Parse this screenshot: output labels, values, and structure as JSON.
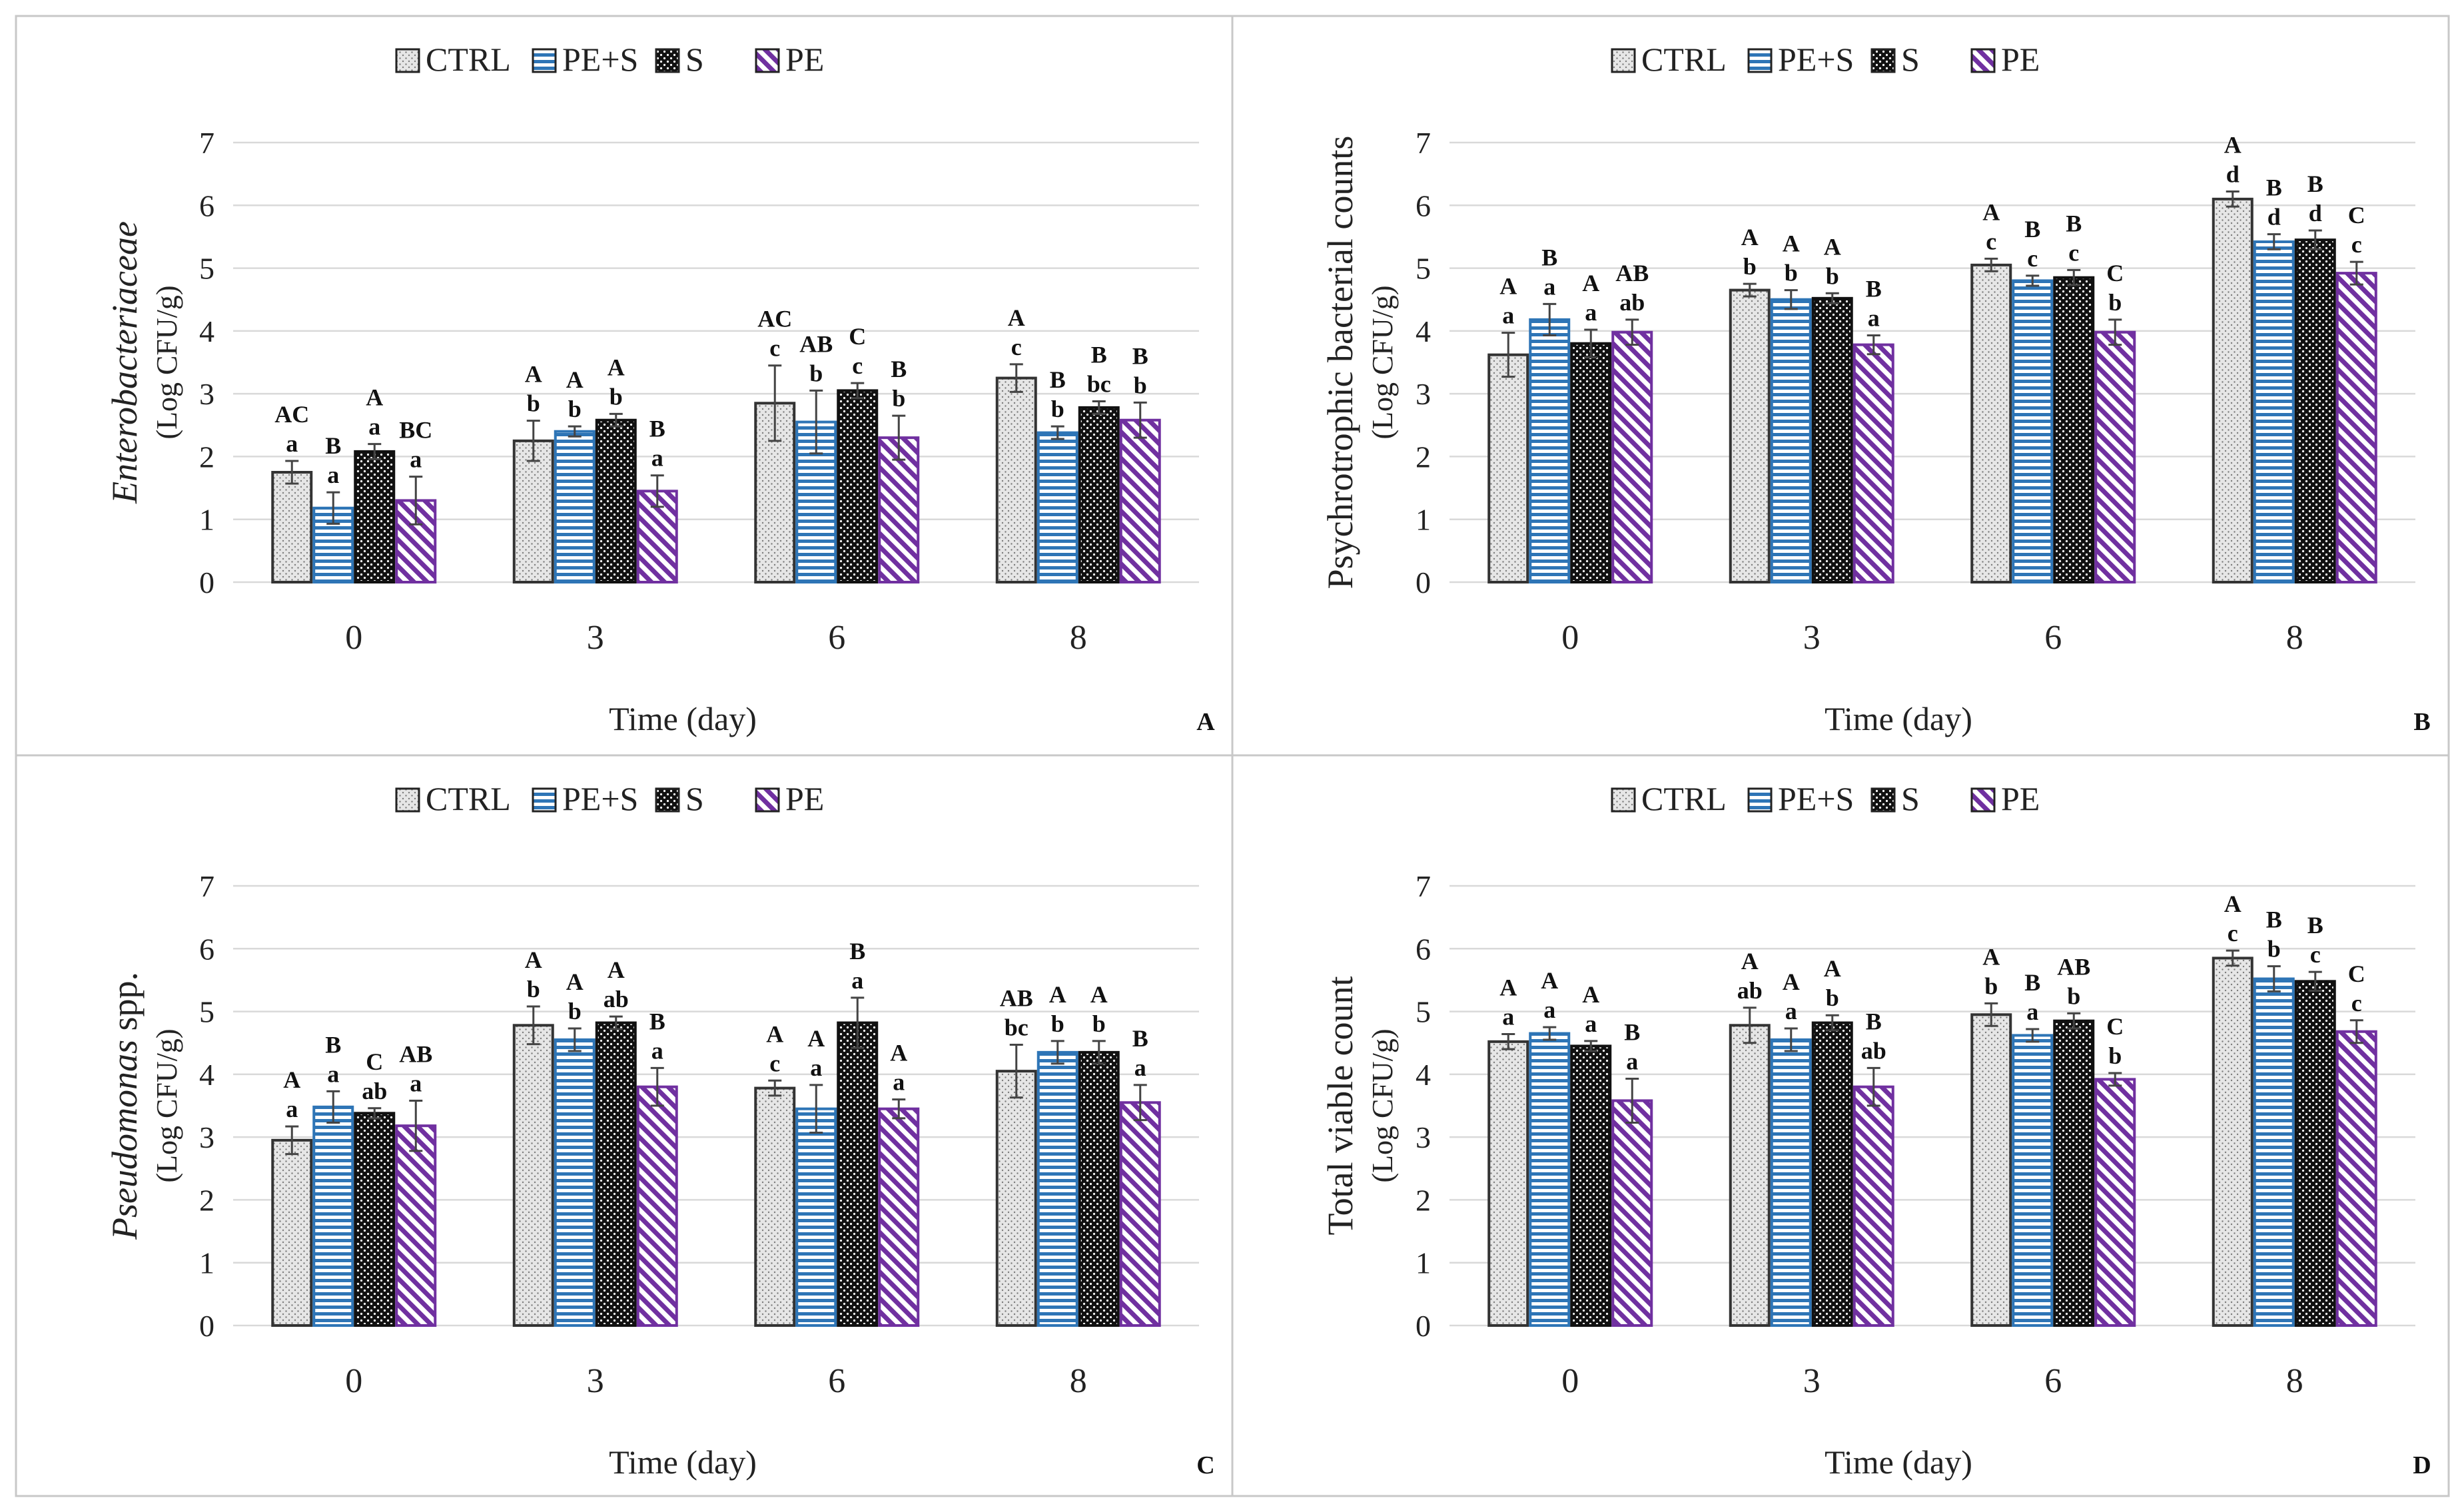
{
  "figure": {
    "legend": [
      "CTRL",
      "PE+S",
      "S",
      "PE"
    ],
    "xlabel": "Time (day)",
    "ylabel_unit": "(Log CFU/g)",
    "days": [
      "0",
      "3",
      "6",
      "8"
    ],
    "y_ticks": [
      "0",
      "1",
      "2",
      "3",
      "4",
      "5",
      "6",
      "7"
    ],
    "colors": {
      "ctrl": "#e6e6e6",
      "pes": "#2e75b6",
      "s": "#111111",
      "pe": "#7030a0",
      "grid": "#d9d9d9",
      "frame": "#c8c8c8"
    }
  },
  "chart_data": [
    {
      "type": "bar",
      "panel": "A",
      "ylabel_name": "Enterobacteriaceae",
      "ylabel_italic": true,
      "ylabel_suffix": "",
      "xlabel": "Time (day)",
      "ylim": [
        0,
        7
      ],
      "categories": [
        "0",
        "3",
        "6",
        "8"
      ],
      "series": [
        {
          "name": "CTRL",
          "values": [
            1.75,
            2.25,
            2.85,
            3.25
          ],
          "errors": [
            0.18,
            0.32,
            0.6,
            0.22
          ]
        },
        {
          "name": "PE+S",
          "values": [
            1.18,
            2.4,
            2.55,
            2.38
          ],
          "errors": [
            0.25,
            0.08,
            0.5,
            0.1
          ]
        },
        {
          "name": "S",
          "values": [
            2.08,
            2.58,
            3.05,
            2.78
          ],
          "errors": [
            0.12,
            0.1,
            0.12,
            0.1
          ]
        },
        {
          "name": "PE",
          "values": [
            1.3,
            1.45,
            2.3,
            2.58
          ],
          "errors": [
            0.38,
            0.25,
            0.35,
            0.28
          ]
        }
      ],
      "labels_upper": [
        [
          "AC",
          "A",
          "AC",
          "A"
        ],
        [
          "B",
          "A",
          "AB",
          "B"
        ],
        [
          "A",
          "A",
          "C",
          "B"
        ],
        [
          "BC",
          "B",
          "B",
          "B"
        ]
      ],
      "labels_lower": [
        [
          "a",
          "b",
          "c",
          "c"
        ],
        [
          "a",
          "b",
          "b",
          "b"
        ],
        [
          "a",
          "b",
          "c",
          "bc"
        ],
        [
          "a",
          "a",
          "b",
          "b"
        ]
      ]
    },
    {
      "type": "bar",
      "panel": "B",
      "ylabel_name": "Psychrotrophic  bacterial counts",
      "ylabel_italic": false,
      "ylabel_suffix": "",
      "xlabel": "Time (day)",
      "ylim": [
        0,
        7
      ],
      "categories": [
        "0",
        "3",
        "6",
        "8"
      ],
      "series": [
        {
          "name": "CTRL",
          "values": [
            3.62,
            4.65,
            5.05,
            6.1
          ],
          "errors": [
            0.35,
            0.1,
            0.1,
            0.12
          ]
        },
        {
          "name": "PE+S",
          "values": [
            4.18,
            4.5,
            4.8,
            5.42
          ],
          "errors": [
            0.25,
            0.15,
            0.08,
            0.12
          ]
        },
        {
          "name": "S",
          "values": [
            3.8,
            4.52,
            4.85,
            5.45
          ],
          "errors": [
            0.22,
            0.08,
            0.12,
            0.15
          ]
        },
        {
          "name": "PE",
          "values": [
            3.98,
            3.78,
            3.98,
            4.92
          ],
          "errors": [
            0.2,
            0.15,
            0.2,
            0.18
          ]
        }
      ],
      "labels_upper": [
        [
          "A",
          "A",
          "A",
          "A"
        ],
        [
          "B",
          "A",
          "B",
          "B"
        ],
        [
          "A",
          "A",
          "B",
          "B"
        ],
        [
          "AB",
          "B",
          "C",
          "C"
        ]
      ],
      "labels_lower": [
        [
          "a",
          "b",
          "c",
          "d"
        ],
        [
          "a",
          "b",
          "c",
          "d"
        ],
        [
          "a",
          "b",
          "c",
          "d"
        ],
        [
          "ab",
          "a",
          "b",
          "c"
        ]
      ]
    },
    {
      "type": "bar",
      "panel": "C",
      "ylabel_name": "Pseudomonas",
      "ylabel_italic": true,
      "ylabel_suffix": " spp.",
      "xlabel": "Time (day)",
      "ylim": [
        0,
        7
      ],
      "categories": [
        "0",
        "3",
        "6",
        "8"
      ],
      "series": [
        {
          "name": "CTRL",
          "values": [
            2.95,
            4.78,
            3.78,
            4.05
          ],
          "errors": [
            0.22,
            0.3,
            0.12,
            0.42
          ]
        },
        {
          "name": "PE+S",
          "values": [
            3.48,
            4.55,
            3.45,
            4.35
          ],
          "errors": [
            0.25,
            0.18,
            0.38,
            0.18
          ]
        },
        {
          "name": "S",
          "values": [
            3.38,
            4.82,
            4.82,
            4.35
          ],
          "errors": [
            0.08,
            0.1,
            0.4,
            0.18
          ]
        },
        {
          "name": "PE",
          "values": [
            3.18,
            3.8,
            3.45,
            3.55
          ],
          "errors": [
            0.4,
            0.3,
            0.15,
            0.28
          ]
        }
      ],
      "labels_upper": [
        [
          "A",
          "A",
          "A",
          "AB"
        ],
        [
          "B",
          "A",
          "A",
          "A"
        ],
        [
          "C",
          "A",
          "B",
          "A"
        ],
        [
          "AB",
          "B",
          "A",
          "B"
        ]
      ],
      "labels_lower": [
        [
          "a",
          "b",
          "c",
          "bc"
        ],
        [
          "a",
          "b",
          "a",
          "b"
        ],
        [
          "ab",
          "ab",
          "a",
          "b"
        ],
        [
          "a",
          "a",
          "a",
          "a"
        ]
      ]
    },
    {
      "type": "bar",
      "panel": "D",
      "ylabel_name": "Total viable count",
      "ylabel_italic": false,
      "ylabel_suffix": "",
      "xlabel": "Time (day)",
      "ylim": [
        0,
        7
      ],
      "categories": [
        "0",
        "3",
        "6",
        "8"
      ],
      "series": [
        {
          "name": "CTRL",
          "values": [
            4.52,
            4.78,
            4.95,
            5.85
          ],
          "errors": [
            0.12,
            0.28,
            0.18,
            0.12
          ]
        },
        {
          "name": "PE+S",
          "values": [
            4.65,
            4.55,
            4.62,
            5.52
          ],
          "errors": [
            0.1,
            0.18,
            0.1,
            0.2
          ]
        },
        {
          "name": "S",
          "values": [
            4.45,
            4.82,
            4.85,
            5.48
          ],
          "errors": [
            0.08,
            0.12,
            0.12,
            0.15
          ]
        },
        {
          "name": "PE",
          "values": [
            3.58,
            3.8,
            3.92,
            4.68
          ],
          "errors": [
            0.35,
            0.3,
            0.1,
            0.18
          ]
        }
      ],
      "labels_upper": [
        [
          "A",
          "A",
          "A",
          "A"
        ],
        [
          "A",
          "A",
          "B",
          "B"
        ],
        [
          "A",
          "A",
          "AB",
          "B"
        ],
        [
          "B",
          "B",
          "C",
          "C"
        ]
      ],
      "labels_lower": [
        [
          "a",
          "ab",
          "b",
          "c"
        ],
        [
          "a",
          "a",
          "a",
          "b"
        ],
        [
          "a",
          "b",
          "b",
          "c"
        ],
        [
          "a",
          "ab",
          "b",
          "c"
        ]
      ]
    }
  ]
}
